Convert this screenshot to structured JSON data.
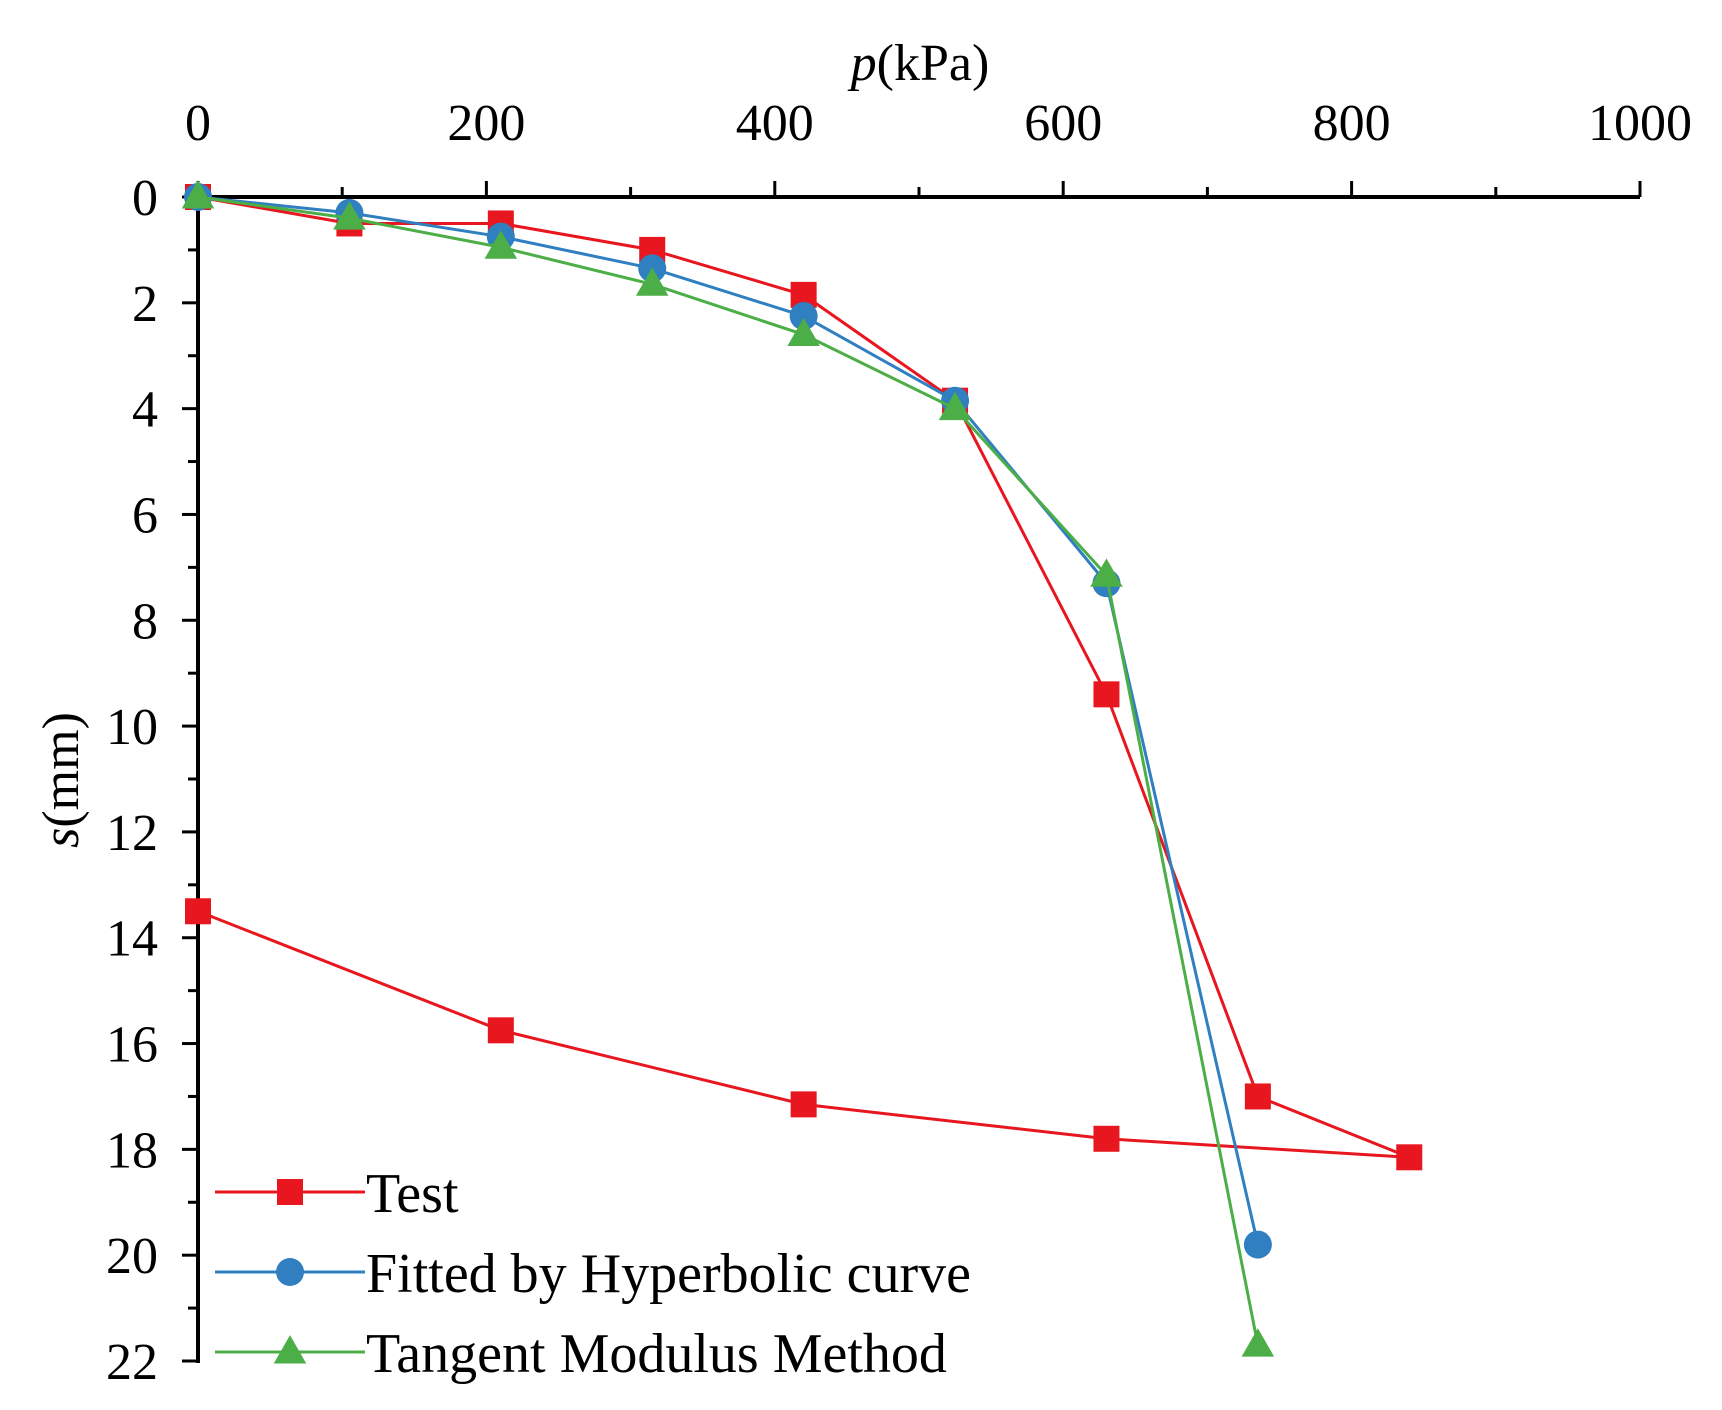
{
  "chart_data": {
    "type": "line",
    "title": "",
    "xlabel": {
      "var": "p",
      "unit": "(kPa)"
    },
    "ylabel": {
      "var": "s",
      "unit": "(mm)"
    },
    "x_axis_position": "top",
    "y_axis_inverted": true,
    "xlim": [
      0,
      1000
    ],
    "ylim": [
      0,
      22
    ],
    "x_ticks": [
      "0",
      "200",
      "400",
      "600",
      "800",
      "1000"
    ],
    "y_ticks": [
      "0",
      "2",
      "4",
      "6",
      "8",
      "10",
      "12",
      "14",
      "16",
      "18",
      "20",
      "22"
    ],
    "grid": false,
    "legend_position": "bottom-left",
    "series": [
      {
        "name": "Test",
        "color": "#e8161e",
        "marker": "square",
        "points": [
          [
            0,
            0
          ],
          [
            105,
            0.5
          ],
          [
            210,
            0.5
          ],
          [
            315,
            1.0
          ],
          [
            420,
            1.85
          ],
          [
            525,
            3.85
          ],
          [
            630,
            9.4
          ],
          [
            735,
            17.0
          ],
          [
            840,
            18.15
          ],
          [
            630,
            17.8
          ],
          [
            420,
            17.15
          ],
          [
            210,
            15.75
          ],
          [
            0,
            13.5
          ]
        ]
      },
      {
        "name": "Fitted by Hyperbolic curve",
        "color": "#2f7fc1",
        "marker": "circle",
        "points": [
          [
            0,
            0
          ],
          [
            105,
            0.3
          ],
          [
            210,
            0.75
          ],
          [
            315,
            1.35
          ],
          [
            420,
            2.25
          ],
          [
            525,
            3.85
          ],
          [
            630,
            7.3
          ],
          [
            735,
            19.8
          ]
        ]
      },
      {
        "name": "Tangent Modulus Method",
        "color": "#4cae47",
        "marker": "triangle",
        "points": [
          [
            0,
            0
          ],
          [
            105,
            0.4
          ],
          [
            210,
            0.95
          ],
          [
            315,
            1.65
          ],
          [
            420,
            2.6
          ],
          [
            525,
            4.0
          ],
          [
            630,
            7.15
          ],
          [
            735,
            21.7
          ]
        ]
      }
    ]
  }
}
